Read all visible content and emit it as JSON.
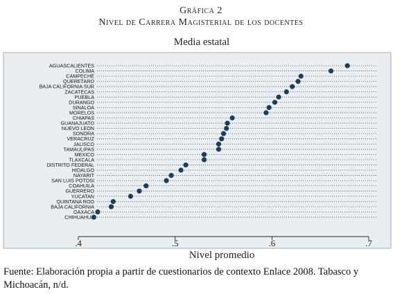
{
  "figure": {
    "label": "Gráfica 2",
    "heading": "Nivel de Carrera Magisterial de los docentes",
    "footnote": "Fuente: Elaboración propia a partir de cuestionarios de contexto Enlace 2008. Tabasco y Michoacán, n/d."
  },
  "colors": {
    "plot_background": "#e9eef3",
    "marker": "#1e3d59",
    "axis": "#222222"
  },
  "chart_data": {
    "type": "scatter",
    "subtitle": "Media estatal",
    "xlabel": "Nivel promedio",
    "xlim": [
      0.4,
      0.7
    ],
    "xticks": [
      0.4,
      0.5,
      0.6,
      0.7
    ],
    "xtick_labels": [
      ".4",
      ".5",
      ".6",
      ".7"
    ],
    "grid": "dotted horizontal lines per state",
    "legend": "none",
    "categories": [
      "AGUASCALIENTES",
      "COLIMA",
      "CAMPECHE",
      "QUERETARO",
      "BAJA CALIFORNIA SUR",
      "ZACATECAS",
      "PUEBLA",
      "DURANGO",
      "SINALOA",
      "MORELOS",
      "CHIAPAS",
      "GUANAJUATO",
      "NUEVO LEON",
      "SONORA",
      "VERACRUZ",
      "JALISCO",
      "TAMAULIPAS",
      "MEXICO",
      "TLAXCALA",
      "DISTRITO FEDERAL",
      "HIDALGO",
      "NAYARIT",
      "SAN LUIS POTOSI",
      "COAHUILA",
      "GUERRERO",
      "YUCATAN",
      "QUINTANA ROO",
      "BAJA CALIFORNIA",
      "OAXACA",
      "CHIHUAHUA"
    ],
    "values": [
      0.678,
      0.661,
      0.63,
      0.627,
      0.621,
      0.615,
      0.607,
      0.603,
      0.597,
      0.594,
      0.559,
      0.554,
      0.553,
      0.55,
      0.548,
      0.545,
      0.545,
      0.53,
      0.53,
      0.511,
      0.506,
      0.496,
      0.491,
      0.47,
      0.463,
      0.454,
      0.436,
      0.434,
      0.42,
      0.416
    ]
  }
}
